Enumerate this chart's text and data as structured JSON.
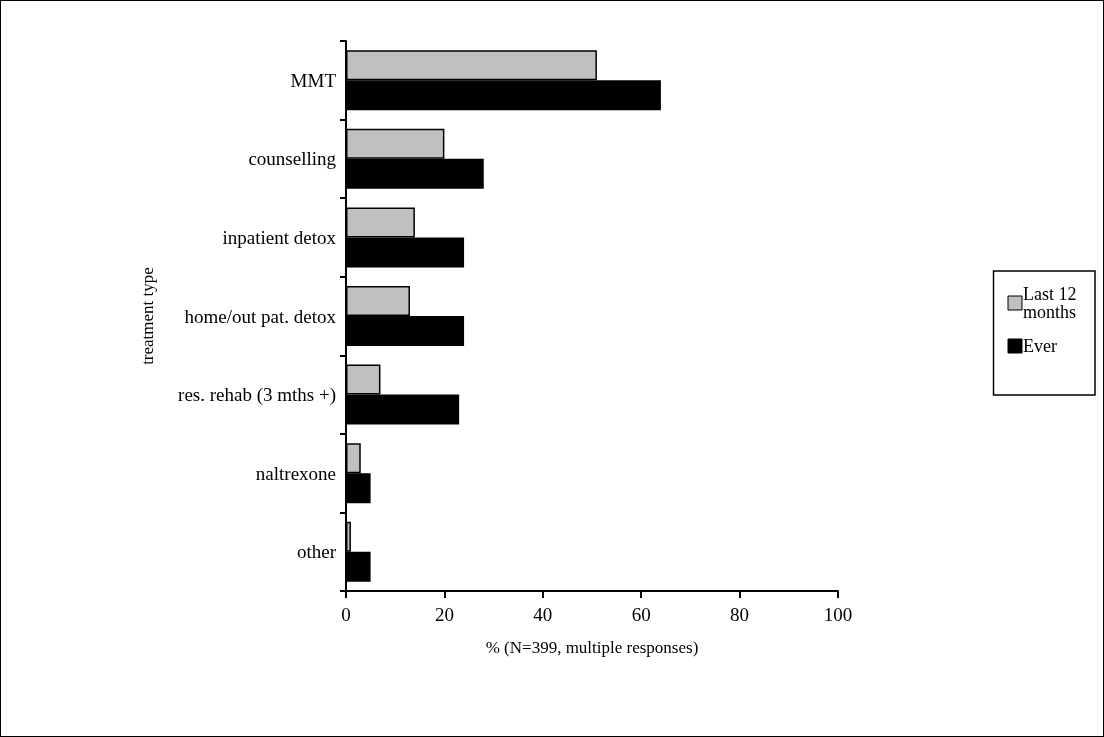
{
  "chart_data": {
    "type": "bar",
    "orientation": "horizontal",
    "xlabel": "% (N=399, multiple responses)",
    "ylabel": "treatment type",
    "categories": [
      "MMT",
      "counselling",
      "inpatient detox",
      "home/out pat. detox",
      "res. rehab (3 mths +)",
      "naltrexone",
      "other"
    ],
    "series": [
      {
        "name": "Last 12 months",
        "color": "#c0c0c0",
        "values": [
          51,
          20,
          14,
          13,
          7,
          3,
          1
        ]
      },
      {
        "name": "Ever",
        "color": "#000000",
        "values": [
          64,
          28,
          24,
          24,
          23,
          5,
          5
        ]
      }
    ],
    "xlim": [
      0,
      100
    ],
    "xticks": [
      0,
      20,
      40,
      60,
      80,
      100
    ],
    "grid": false,
    "legend": "right"
  }
}
